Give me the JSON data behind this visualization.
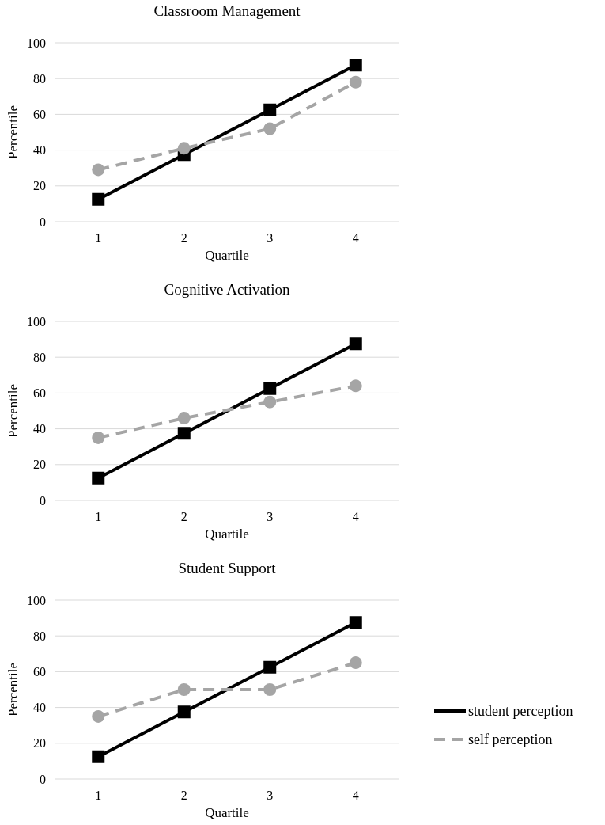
{
  "chart_data": [
    {
      "type": "line",
      "title": "Classroom Management",
      "xlabel": "Quartile",
      "ylabel": "Percentile",
      "categories": [
        "1",
        "2",
        "3",
        "4"
      ],
      "ylim": [
        0,
        100
      ],
      "yticks": [
        0,
        20,
        40,
        60,
        80,
        100
      ],
      "grid": "y",
      "series": [
        {
          "color": "#000000",
          "values": [
            12.5,
            37.5,
            62.5,
            87.5
          ],
          "marker": "square",
          "line_style": "solid"
        },
        {
          "color": "#a5a5a5",
          "values": [
            29,
            41,
            52,
            78
          ],
          "marker": "circle",
          "line_style": "dashed"
        }
      ]
    },
    {
      "type": "line",
      "title": "Cognitive Activation",
      "xlabel": "Quartile",
      "ylabel": "Percentile",
      "categories": [
        "1",
        "2",
        "3",
        "4"
      ],
      "ylim": [
        0,
        100
      ],
      "yticks": [
        0,
        20,
        40,
        60,
        80,
        100
      ],
      "grid": "y",
      "series": [
        {
          "color": "#000000",
          "values": [
            12.5,
            37.5,
            62.5,
            87.5
          ],
          "marker": "square",
          "line_style": "solid"
        },
        {
          "color": "#a5a5a5",
          "values": [
            35,
            46,
            55,
            64
          ],
          "marker": "circle",
          "line_style": "dashed"
        }
      ]
    },
    {
      "type": "line",
      "title": "Student Support",
      "xlabel": "Quartile",
      "ylabel": "Percentile",
      "categories": [
        "1",
        "2",
        "3",
        "4"
      ],
      "ylim": [
        0,
        100
      ],
      "yticks": [
        0,
        20,
        40,
        60,
        80,
        100
      ],
      "grid": "y",
      "legend": "right",
      "series": [
        {
          "name": "student perception",
          "color": "#000000",
          "values": [
            12.5,
            37.5,
            62.5,
            87.5
          ],
          "marker": "square",
          "line_style": "solid"
        },
        {
          "name": "self perception",
          "color": "#a5a5a5",
          "values": [
            35,
            50,
            50,
            65
          ],
          "marker": "circle",
          "line_style": "dashed"
        }
      ]
    }
  ]
}
